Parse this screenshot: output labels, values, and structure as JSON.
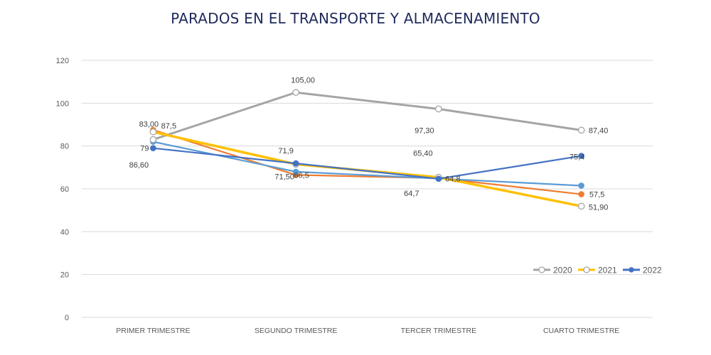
{
  "chart_data": {
    "type": "line",
    "title": "PARADOS EN EL TRANSPORTE Y ALMACENAMIENTO",
    "xlabel": "",
    "ylabel": "",
    "categories": [
      "PRIMER TRIMESTRE",
      "SEGUNDO TRIMESTRE",
      "TERCER TRIMESTRE",
      "CUARTO TRIMESTRE"
    ],
    "ylim": [
      0,
      120
    ],
    "yticks": [
      0,
      20,
      40,
      60,
      80,
      100,
      120
    ],
    "grid": true,
    "legend_position": "bottom-right",
    "series": [
      {
        "name": "",
        "color": "#ed7d31",
        "marker": "filled",
        "in_legend": false,
        "values": [
          87.5,
          66.5,
          65.0,
          57.5
        ],
        "labels": [
          "87,5",
          "66,5",
          "",
          "57,5"
        ]
      },
      {
        "name": "",
        "color": "#5b9bd5",
        "marker": "filled",
        "in_legend": false,
        "values": [
          82.0,
          68.0,
          64.8,
          61.5
        ],
        "labels": [
          "",
          "",
          "64,8",
          ""
        ]
      },
      {
        "name": "2020",
        "color": "#a5a5a5",
        "marker": "hollow",
        "in_legend": true,
        "values": [
          83.0,
          105.0,
          97.3,
          87.4
        ],
        "labels": [
          "83,00",
          "105,00",
          "97,30",
          "87,40"
        ]
      },
      {
        "name": "2021",
        "color": "#ffc000",
        "marker": "hollow",
        "in_legend": true,
        "values": [
          86.6,
          71.5,
          65.4,
          51.9
        ],
        "labels": [
          "86,60",
          "71,50",
          "65,40",
          "51,90"
        ]
      },
      {
        "name": "2022",
        "color": "#4472c4",
        "marker": "filled",
        "in_legend": true,
        "values": [
          79.0,
          71.9,
          64.7,
          75.4
        ],
        "labels": [
          "79",
          "71,9",
          "64,7",
          "75,4"
        ]
      }
    ]
  }
}
